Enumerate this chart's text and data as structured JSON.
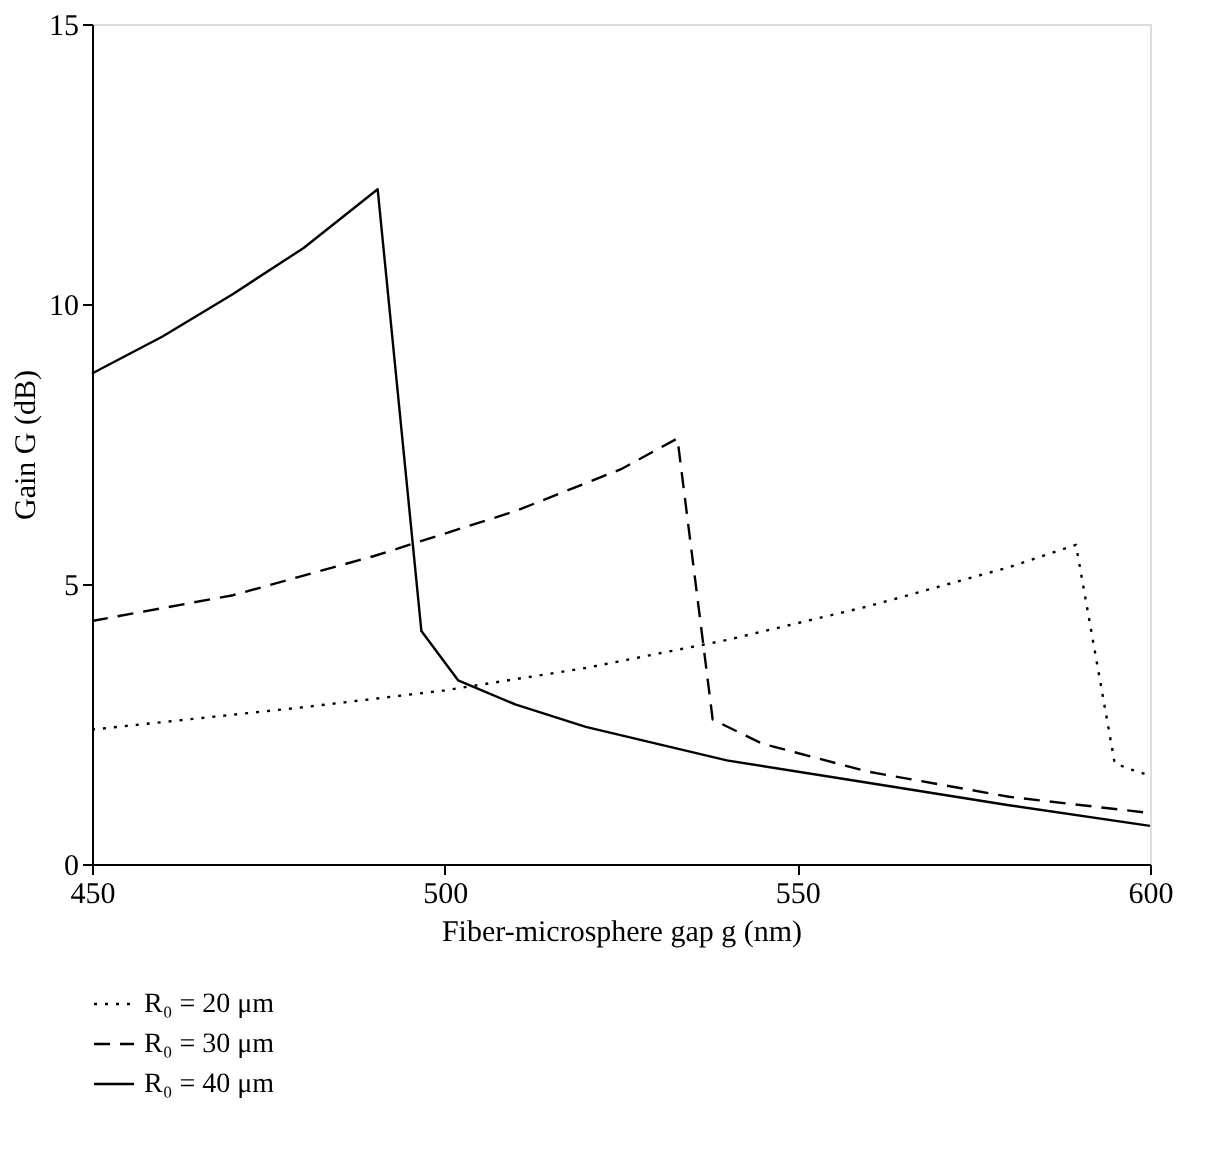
{
  "chart_data": {
    "type": "line",
    "xlabel": "Fiber-microsphere gap g (nm)",
    "ylabel": "Gain G (dB)",
    "xlim": [
      450,
      600
    ],
    "xticks": [
      450,
      500,
      550,
      600
    ],
    "ylim": [
      0,
      15
    ],
    "yticks": [
      0,
      5,
      10,
      15
    ],
    "grid": false,
    "legend": "bottom",
    "marker": "none",
    "series": [
      {
        "name": "R₀ = 20 μm",
        "color": "#000000",
        "line_style": "dotted",
        "x": [
          450,
          480,
          500,
          520,
          540,
          560,
          580,
          589.5,
          595,
          597,
          600
        ],
        "values": [
          2.4,
          2.8,
          3.1,
          3.5,
          4.0,
          4.6,
          5.3,
          5.7,
          1.8,
          1.7,
          1.58
        ]
      },
      {
        "name": "R₀ = 30 μm",
        "color": "#000000",
        "line_style": "dashed",
        "x": [
          450,
          470,
          490,
          510,
          525,
          533,
          538,
          545,
          560,
          580,
          600
        ],
        "values": [
          4.34,
          4.8,
          5.5,
          6.3,
          7.05,
          7.6,
          2.58,
          2.15,
          1.65,
          1.2,
          0.91
        ]
      },
      {
        "name": "R₀ = 40 μm",
        "color": "#000000",
        "line_style": "solid",
        "x": [
          450,
          460,
          470,
          480,
          490.5,
          496.7,
          501.9,
          510,
          520,
          540,
          560,
          580,
          600
        ],
        "values": [
          8.76,
          9.42,
          10.18,
          11.0,
          12.05,
          4.16,
          3.28,
          2.85,
          2.45,
          1.85,
          1.45,
          1.05,
          0.68
        ]
      }
    ]
  }
}
